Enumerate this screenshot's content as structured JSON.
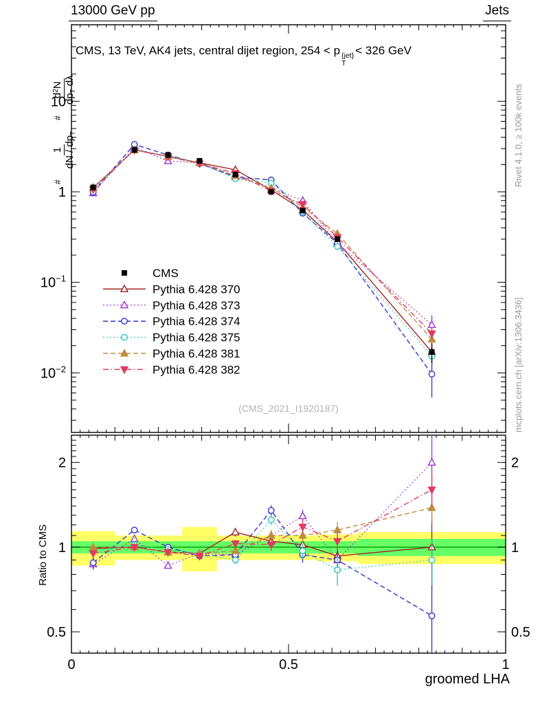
{
  "header": {
    "left": "13000 GeV pp",
    "right": "Jets"
  },
  "title": {
    "pre": "CMS, 13 TeV, AK4 jets, central dijet region, 254 < p",
    "sup": "{jet}",
    "sub": "T",
    "post": "< 326 GeV"
  },
  "ylabel": {
    "hash": "#",
    "f1num": "1",
    "f1den_a": "dN / dp",
    "f1den_sub": "T",
    "f2num_a": "d",
    "f2num_sup": "2",
    "f2num_b": "N",
    "f2den_a": "dp",
    "f2den_sub": "T",
    "f2den_b": " dλ"
  },
  "ratio_ylabel": "Ratio to CMS",
  "xlabel": "groomed LHA",
  "watermark": "(CMS_2021_I1920187)",
  "side": {
    "rivet": "Rivet 4.1.0, ≥ 100k events",
    "mcplots": "mcplots.cern.ch [arXiv:1306.3436]"
  },
  "chart_data": {
    "type": "line",
    "title": "CMS, 13 TeV, AK4 jets, central dijet region, 254 < pT^{jet} < 326 GeV",
    "xlabel": "groomed LHA",
    "ylabel": "1/(dN/dpT) d²N/(dpT dλ)",
    "legend_position": "left-middle",
    "grid": false,
    "xlim": [
      0,
      1
    ],
    "main_ylim": [
      0.0022,
      70
    ],
    "ratio_ylim": [
      0.42,
      2.5
    ],
    "x": [
      0.05,
      0.145,
      0.2225,
      0.295,
      0.3775,
      0.46,
      0.5325,
      0.6125,
      0.83
    ],
    "bin_edges": [
      0,
      0.1,
      0.19,
      0.255,
      0.335,
      0.42,
      0.5,
      0.565,
      0.66,
      1.0
    ],
    "series": [
      {
        "name": "cms",
        "label": "CMS",
        "color": "#000000",
        "marker": "square",
        "fill": true,
        "line": "none",
        "values": [
          1.12,
          2.9,
          2.55,
          2.2,
          1.55,
          1.0,
          0.62,
          0.3,
          0.017
        ],
        "yerr_rel": [
          0.04,
          0.02,
          0.02,
          0.02,
          0.03,
          0.04,
          0.05,
          0.08,
          0.25
        ]
      },
      {
        "name": "py370",
        "label": "Pythia 6.428 370",
        "color": "#a02020",
        "marker": "triangle-up",
        "fill": false,
        "line": "solid",
        "values": [
          1.11,
          2.9,
          2.45,
          2.09,
          1.75,
          1.05,
          0.63,
          0.28,
          0.017
        ],
        "yerr_rel": [
          0.04,
          0.02,
          0.02,
          0.02,
          0.03,
          0.04,
          0.05,
          0.08,
          0.3
        ],
        "ratio": [
          0.99,
          1.0,
          0.96,
          0.95,
          1.13,
          1.05,
          1.02,
          0.93,
          1.0
        ],
        "ratio_err": [
          0.03,
          0.02,
          0.02,
          0.02,
          0.04,
          0.05,
          0.06,
          0.08,
          0.3
        ]
      },
      {
        "name": "py373",
        "label": "Pythia 6.428 373",
        "color": "#9933cc",
        "marker": "triangle-up",
        "fill": false,
        "line": "dotted",
        "values": [
          0.97,
          3.1,
          2.19,
          2.09,
          1.46,
          1.1,
          0.8,
          0.27,
          0.034
        ],
        "yerr_rel": [
          0.04,
          0.02,
          0.02,
          0.02,
          0.03,
          0.04,
          0.05,
          0.08,
          0.27
        ],
        "ratio": [
          0.87,
          1.07,
          0.86,
          0.95,
          0.94,
          1.1,
          1.29,
          0.9,
          2.0
        ],
        "ratio_err": [
          0.04,
          0.02,
          0.02,
          0.02,
          0.03,
          0.05,
          0.07,
          0.08,
          0.55
        ]
      },
      {
        "name": "py374",
        "label": "Pythia 6.428 374",
        "color": "#3333cc",
        "marker": "circle",
        "fill": false,
        "line": "dashed",
        "values": [
          0.99,
          3.34,
          2.55,
          2.05,
          1.46,
          1.35,
          0.58,
          0.27,
          0.0097
        ],
        "yerr_rel": [
          0.04,
          0.02,
          0.02,
          0.02,
          0.03,
          0.04,
          0.05,
          0.08,
          0.45
        ],
        "ratio": [
          0.88,
          1.15,
          1.0,
          0.93,
          0.94,
          1.35,
          0.94,
          0.9,
          0.57
        ],
        "ratio_err": [
          0.04,
          0.03,
          0.02,
          0.02,
          0.03,
          0.06,
          0.06,
          0.08,
          0.3
        ]
      },
      {
        "name": "py375",
        "label": "Pythia 6.428 375",
        "color": "#22c4b8",
        "marker": "circle",
        "fill": false,
        "line": "dotted",
        "values": [
          1.09,
          2.96,
          2.5,
          2.09,
          1.4,
          1.25,
          0.6,
          0.249,
          0.0153
        ],
        "yerr_rel": [
          0.04,
          0.02,
          0.02,
          0.02,
          0.03,
          0.04,
          0.05,
          0.08,
          0.2
        ],
        "ratio": [
          0.97,
          1.02,
          0.98,
          0.95,
          0.9,
          1.25,
          0.97,
          0.83,
          0.9
        ],
        "ratio_err": [
          0.04,
          0.02,
          0.02,
          0.02,
          0.03,
          0.05,
          0.06,
          0.1,
          0.17
        ]
      },
      {
        "name": "py381",
        "label": "Pythia 6.428 381",
        "color": "#bf8c40",
        "marker": "triangle-up",
        "fill": true,
        "line": "dashed",
        "values": [
          1.12,
          2.9,
          2.45,
          2.09,
          1.5,
          1.1,
          0.68,
          0.345,
          0.0235
        ],
        "yerr_rel": [
          0.04,
          0.02,
          0.02,
          0.02,
          0.03,
          0.04,
          0.05,
          0.08,
          0.12
        ],
        "ratio": [
          1.0,
          1.0,
          0.96,
          0.95,
          0.97,
          1.1,
          1.1,
          1.15,
          1.38
        ],
        "ratio_err": [
          0.03,
          0.02,
          0.02,
          0.02,
          0.03,
          0.05,
          0.06,
          0.08,
          0.16
        ]
      },
      {
        "name": "py382",
        "label": "Pythia 6.428 382",
        "color": "#e23a60",
        "marker": "triangle-down",
        "fill": true,
        "line": "dashdot",
        "values": [
          1.06,
          2.9,
          2.45,
          2.05,
          1.6,
          1.02,
          0.73,
          0.315,
          0.0272
        ],
        "yerr_rel": [
          0.04,
          0.02,
          0.02,
          0.02,
          0.03,
          0.04,
          0.05,
          0.08,
          0.12
        ],
        "ratio": [
          0.95,
          1.0,
          0.96,
          0.93,
          1.03,
          1.02,
          1.18,
          1.05,
          1.6
        ],
        "ratio_err": [
          0.03,
          0.02,
          0.02,
          0.02,
          0.03,
          0.05,
          0.06,
          0.08,
          0.2
        ]
      }
    ],
    "ratio_bands": {
      "edges": [
        0,
        0.1,
        0.19,
        0.255,
        0.335,
        0.42,
        0.5,
        0.565,
        0.66,
        1.0
      ],
      "yellow_lo": [
        0.86,
        0.9,
        0.9,
        0.82,
        0.9,
        0.9,
        0.9,
        0.89,
        0.87
      ],
      "yellow_hi": [
        1.14,
        1.1,
        1.1,
        1.18,
        1.1,
        1.1,
        1.1,
        1.11,
        1.13
      ],
      "green_lo": [
        0.95,
        0.95,
        0.95,
        0.95,
        0.95,
        0.95,
        0.95,
        0.95,
        0.93
      ],
      "green_hi": [
        1.05,
        1.05,
        1.05,
        1.05,
        1.05,
        1.05,
        1.05,
        1.05,
        1.07
      ]
    },
    "main_yticks": [
      {
        "v": 10,
        "base": "10",
        "exp": ""
      },
      {
        "v": 1,
        "base": "1",
        "exp": ""
      },
      {
        "v": 0.1,
        "base": "10",
        "exp": "−1"
      },
      {
        "v": 0.01,
        "base": "10",
        "exp": "−2"
      }
    ],
    "ratio_yticks": [
      {
        "v": 0.5,
        "label": "0.5"
      },
      {
        "v": 1,
        "label": "1"
      },
      {
        "v": 2,
        "label": "2"
      }
    ],
    "xticks": [
      {
        "v": 0,
        "label": "0"
      },
      {
        "v": 0.5,
        "label": "0.5"
      },
      {
        "v": 1,
        "label": "1"
      }
    ],
    "style": {
      "band_yellow": "#ffff66",
      "band_green": "#66ff66",
      "ref_line": "#009900"
    }
  }
}
